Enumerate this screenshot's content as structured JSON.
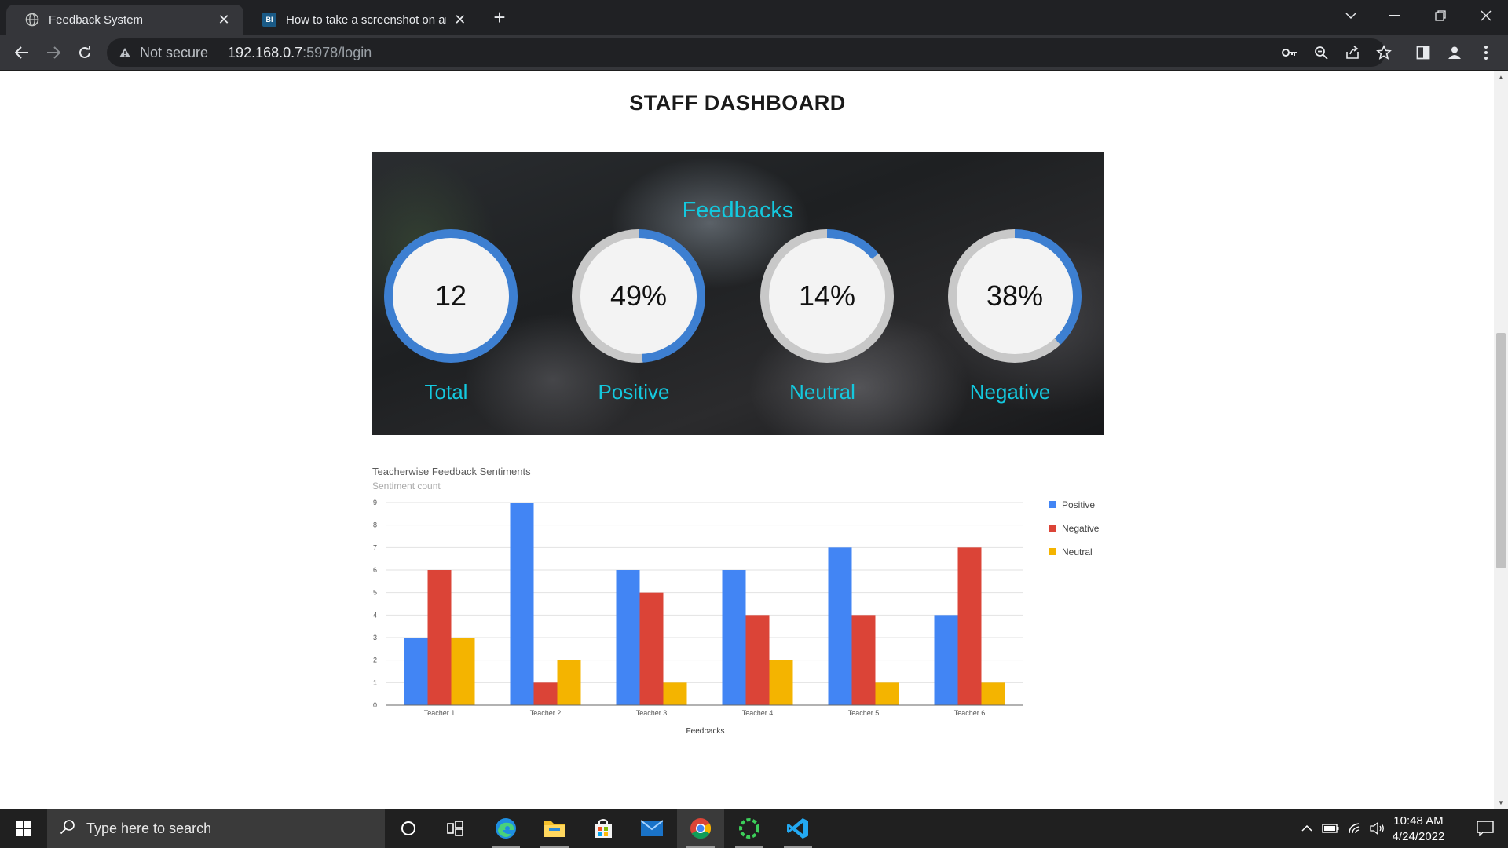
{
  "browser": {
    "tabs": [
      {
        "title": "Feedback System",
        "favicon": "globe-icon",
        "active": true
      },
      {
        "title": "How to take a screenshot on any",
        "favicon_text": "BI",
        "active": false
      }
    ],
    "security_text": "Not secure",
    "url_host": "192.168.0.7",
    "url_rest": ":5978/login"
  },
  "page": {
    "title": "STAFF DASHBOARD"
  },
  "hero": {
    "heading": "Feedbacks",
    "stats": [
      {
        "label": "Total",
        "value": "12",
        "fraction": 1.0
      },
      {
        "label": "Positive",
        "value": "49%",
        "fraction": 0.49
      },
      {
        "label": "Neutral",
        "value": "14%",
        "fraction": 0.14
      },
      {
        "label": "Negative",
        "value": "38%",
        "fraction": 0.38
      }
    ],
    "colors": {
      "ring_fill": "#3d7fd1",
      "ring_track": "#c8c8c8",
      "accent": "#14c8de"
    }
  },
  "chart_data": {
    "type": "bar",
    "title": "Teacherwise Feedback Sentiments",
    "subtitle": "Sentiment count",
    "xlabel": "Feedbacks",
    "ylabel": "",
    "categories": [
      "Teacher 1",
      "Teacher 2",
      "Teacher 3",
      "Teacher 4",
      "Teacher 5",
      "Teacher 6"
    ],
    "series": [
      {
        "name": "Positive",
        "color": "#4285f4",
        "values": [
          3,
          9,
          6,
          6,
          7,
          4
        ]
      },
      {
        "name": "Negative",
        "color": "#db4437",
        "values": [
          6,
          1,
          5,
          4,
          4,
          7
        ]
      },
      {
        "name": "Neutral",
        "color": "#f4b400",
        "values": [
          3,
          2,
          1,
          2,
          1,
          1
        ]
      }
    ],
    "ylim": [
      0,
      9
    ],
    "yticks": [
      "0",
      "1",
      "2",
      "3",
      "4",
      "5",
      "6",
      "7",
      "8",
      "9"
    ],
    "grid": true,
    "legend_position": "right"
  },
  "taskbar": {
    "search_placeholder": "Type here to search",
    "time": "10:48 AM",
    "date": "4/24/2022"
  }
}
